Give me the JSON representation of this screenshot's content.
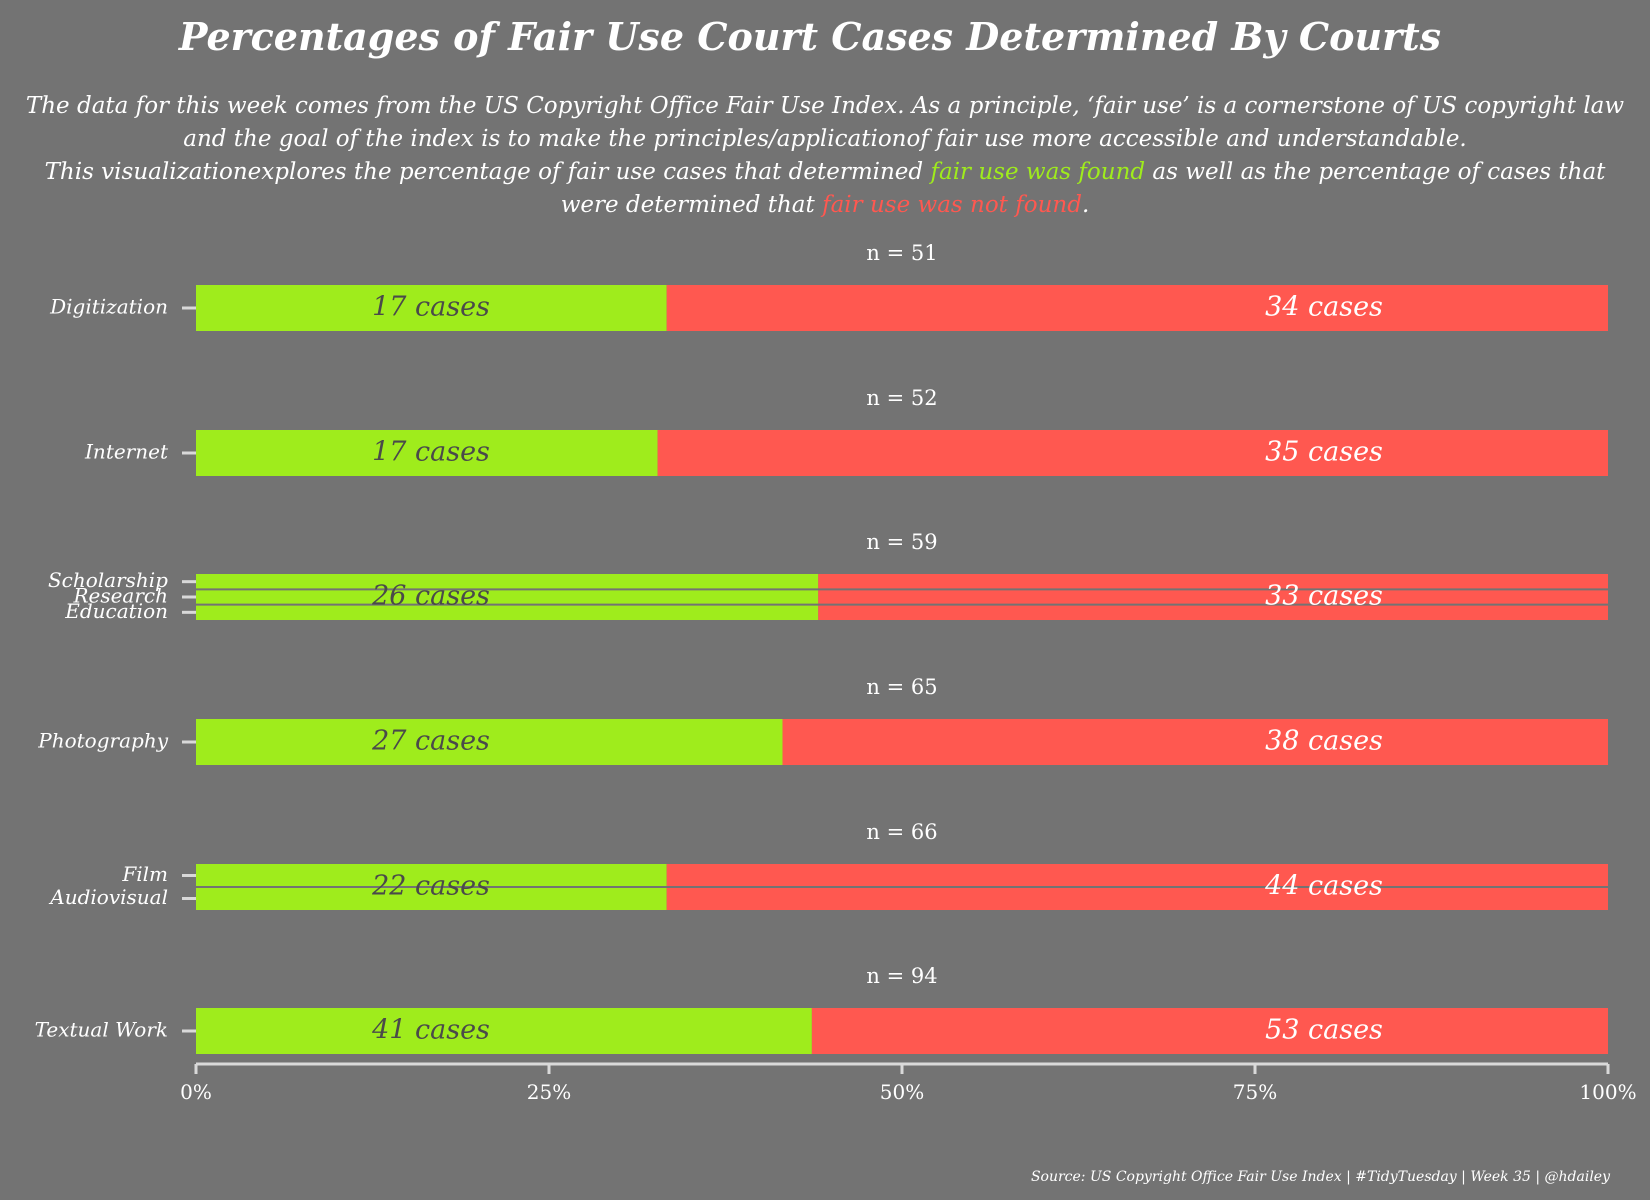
{
  "title": "Percentages of Fair Use Court Cases Determined By Courts",
  "subtitle": {
    "line1": "The data for this week comes from the US Copyright Office Fair Use Index. As a principle, ‘fair use’ is a cornerstone of US copyright law",
    "line2": "and the goal of the index is to make the principles/applicationof fair use more accessible and understandable.",
    "line3_pre": "This visualizationexplores the percentage of fair use cases that determined ",
    "line3_green": "fair use was found",
    "line3_post": " as well as the percentage of cases that",
    "line4_pre": "were determined that ",
    "line4_red": "fair use was not found",
    "line4_post": "."
  },
  "caption": "Source: US Copyright Office Fair Use Index | #TidyTuesday | Week 35 | @hdailey",
  "colors": {
    "background": "#737373",
    "found": "#9fec1c",
    "not_found": "#ff5850",
    "found_label": "#4a4a4a",
    "not_found_label": "#ffffff",
    "axis": "#d9d9d9"
  },
  "chart_data": {
    "type": "bar",
    "orientation": "horizontal",
    "stacked": "percent",
    "xlim": [
      0,
      100
    ],
    "x_ticks": [
      "0%",
      "25%",
      "50%",
      "75%",
      "100%"
    ],
    "grid": false,
    "series": [
      {
        "name": "fair use was found",
        "color": "#9fec1c"
      },
      {
        "name": "fair use was not found",
        "color": "#ff5850"
      }
    ],
    "groups": [
      {
        "n_label": "n = 51",
        "n": 51,
        "found": 17,
        "not_found": 34,
        "found_label": "17 cases",
        "not_found_label": "34 cases",
        "categories": [
          "Digitization"
        ]
      },
      {
        "n_label": "n = 52",
        "n": 52,
        "found": 17,
        "not_found": 35,
        "found_label": "17 cases",
        "not_found_label": "35 cases",
        "categories": [
          "Internet"
        ]
      },
      {
        "n_label": "n = 59",
        "n": 59,
        "found": 26,
        "not_found": 33,
        "found_label": "26 cases",
        "not_found_label": "33 cases",
        "categories": [
          "Scholarship",
          "Research",
          "Education"
        ]
      },
      {
        "n_label": "n = 65",
        "n": 65,
        "found": 27,
        "not_found": 38,
        "found_label": "27 cases",
        "not_found_label": "38 cases",
        "categories": [
          "Photography"
        ]
      },
      {
        "n_label": "n = 66",
        "n": 66,
        "found": 22,
        "not_found": 44,
        "found_label": "22 cases",
        "not_found_label": "44 cases",
        "categories": [
          "Film",
          "Audiovisual"
        ]
      },
      {
        "n_label": "n = 94",
        "n": 94,
        "found": 41,
        "not_found": 53,
        "found_label": "41 cases",
        "not_found_label": "53 cases",
        "categories": [
          "Textual Work"
        ]
      }
    ]
  }
}
